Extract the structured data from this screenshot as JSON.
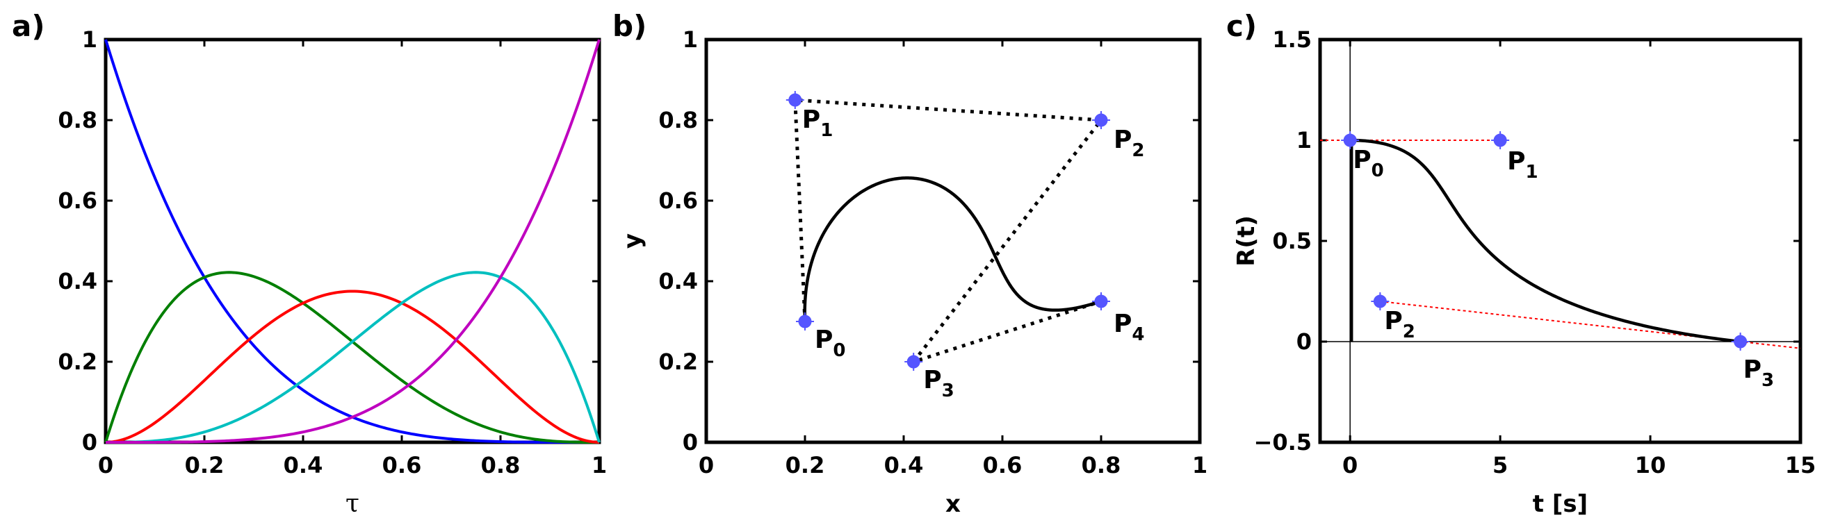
{
  "chart_data": [
    {
      "panel": "a)",
      "type": "line",
      "xlabel": "τ",
      "ylabel": "",
      "xlim": [
        0,
        1
      ],
      "ylim": [
        0,
        1
      ],
      "xticks": [
        "0",
        "0.2",
        "0.4",
        "0.6",
        "0.8",
        "1"
      ],
      "yticks": [
        "0",
        "0.2",
        "0.4",
        "0.6",
        "0.8",
        "1"
      ],
      "grid": false,
      "series": [
        {
          "color": "#0000ff",
          "degree": 4,
          "index": 0
        },
        {
          "color": "#007f00",
          "degree": 4,
          "index": 1
        },
        {
          "color": "#ff0000",
          "degree": 4,
          "index": 2
        },
        {
          "color": "#00bfbf",
          "degree": 4,
          "index": 3
        },
        {
          "color": "#bf00bf",
          "degree": 4,
          "index": 4
        }
      ]
    },
    {
      "panel": "b)",
      "type": "line",
      "xlabel": "x",
      "ylabel": "y",
      "xlim": [
        0,
        1
      ],
      "ylim": [
        0,
        1
      ],
      "xticks": [
        "0",
        "0.2",
        "0.4",
        "0.6",
        "0.8",
        "1"
      ],
      "yticks": [
        "0",
        "0.2",
        "0.4",
        "0.6",
        "0.8",
        "1"
      ],
      "grid": false,
      "control_points": [
        {
          "label": "P",
          "sub": "0",
          "x": 0.2,
          "y": 0.3
        },
        {
          "label": "P",
          "sub": "1",
          "x": 0.18,
          "y": 0.85
        },
        {
          "label": "P",
          "sub": "2",
          "x": 0.8,
          "y": 0.8
        },
        {
          "label": "P",
          "sub": "3",
          "x": 0.42,
          "y": 0.2
        },
        {
          "label": "P",
          "sub": "4",
          "x": 0.8,
          "y": 0.35
        }
      ],
      "point_color": "#5555ff",
      "curve_color": "#000000"
    },
    {
      "panel": "c)",
      "type": "line",
      "xlabel": "t [s]",
      "ylabel": "R(t)",
      "xlim": [
        -1,
        15
      ],
      "ylim": [
        -0.5,
        1.5
      ],
      "xticks": [
        "0",
        "5",
        "10",
        "15"
      ],
      "yticks": [
        "−0.5",
        "0",
        "0.5",
        "1",
        "1.5"
      ],
      "grid": false,
      "control_points": [
        {
          "label": "P",
          "sub": "0",
          "x": 0,
          "y": 1
        },
        {
          "label": "P",
          "sub": "1",
          "x": 5,
          "y": 1
        },
        {
          "label": "P",
          "sub": "2",
          "x": 1,
          "y": 0.2
        },
        {
          "label": "P",
          "sub": "3",
          "x": 13,
          "y": 0
        }
      ],
      "point_color": "#5555ff",
      "curve_color": "#000000",
      "tangent_color": "#ff0000"
    }
  ]
}
